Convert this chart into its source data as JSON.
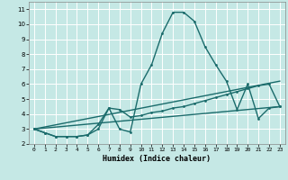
{
  "title": "",
  "xlabel": "Humidex (Indice chaleur)",
  "xlim": [
    -0.5,
    23.5
  ],
  "ylim": [
    2,
    11.5
  ],
  "yticks": [
    2,
    3,
    4,
    5,
    6,
    7,
    8,
    9,
    10,
    11
  ],
  "xticks": [
    0,
    1,
    2,
    3,
    4,
    5,
    6,
    7,
    8,
    9,
    10,
    11,
    12,
    13,
    14,
    15,
    16,
    17,
    18,
    19,
    20,
    21,
    22,
    23
  ],
  "bg_color": "#c5e8e5",
  "grid_color": "#ffffff",
  "line_color": "#1a6b6b",
  "line1_x": [
    0,
    1,
    2,
    3,
    4,
    5,
    6,
    7,
    8,
    9,
    10,
    11,
    12,
    13,
    14,
    15,
    16,
    17,
    18,
    19,
    20,
    21,
    22,
    23
  ],
  "line1_y": [
    3.0,
    2.75,
    2.5,
    2.5,
    2.5,
    2.6,
    3.0,
    4.4,
    3.0,
    2.8,
    6.0,
    7.3,
    9.4,
    10.8,
    10.8,
    10.2,
    8.5,
    7.3,
    6.2,
    4.3,
    6.0,
    3.7,
    4.4,
    4.5
  ],
  "line2_x": [
    0,
    1,
    2,
    3,
    4,
    5,
    6,
    7,
    8,
    9,
    10,
    11,
    12,
    13,
    14,
    15,
    16,
    17,
    18,
    19,
    20,
    21,
    22,
    23
  ],
  "line2_y": [
    3.0,
    2.75,
    2.5,
    2.5,
    2.5,
    2.6,
    3.3,
    4.4,
    4.3,
    3.8,
    3.9,
    4.1,
    4.2,
    4.4,
    4.5,
    4.7,
    4.9,
    5.1,
    5.3,
    5.5,
    5.7,
    5.9,
    6.0,
    4.5
  ],
  "line3_x": [
    0,
    23
  ],
  "line3_y": [
    3.0,
    4.5
  ],
  "line4_x": [
    0,
    23
  ],
  "line4_y": [
    3.0,
    6.2
  ]
}
